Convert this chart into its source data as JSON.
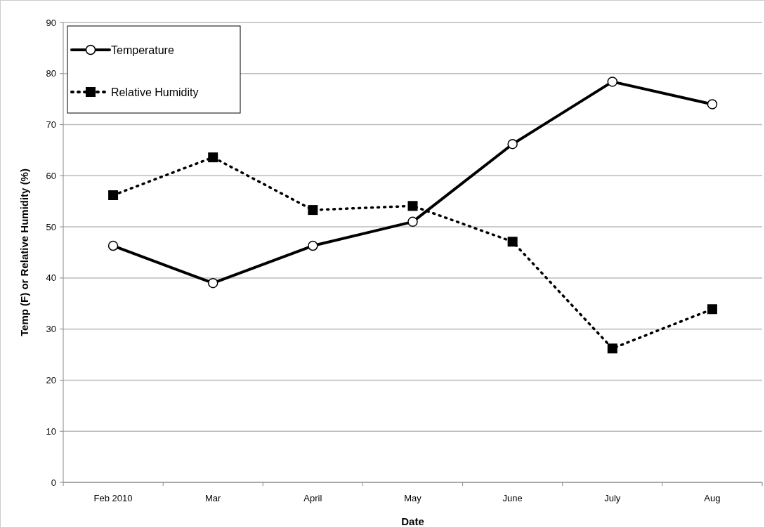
{
  "chart_data": {
    "type": "line",
    "xlabel": "Date",
    "ylabel": "Temp (F) or Relative Humidity (%)",
    "categories": [
      "Feb 2010",
      "Mar",
      "April",
      "May",
      "June",
      "July",
      "Aug"
    ],
    "series": [
      {
        "name": "Temperature",
        "color": "#000000",
        "marker": "circle",
        "line_style": "solid",
        "values": [
          46.3,
          39.0,
          46.3,
          51.0,
          66.2,
          78.4,
          74.0
        ]
      },
      {
        "name": "Relative Humidity",
        "color": "#000000",
        "marker": "square",
        "line_style": "dotted",
        "values": [
          56.2,
          63.6,
          53.3,
          54.1,
          47.1,
          26.2,
          33.9
        ]
      }
    ],
    "ylim": [
      0,
      90
    ],
    "yticks": [
      0,
      10,
      20,
      30,
      40,
      50,
      60,
      70,
      80,
      90
    ],
    "grid": "y",
    "legend": "top left"
  }
}
